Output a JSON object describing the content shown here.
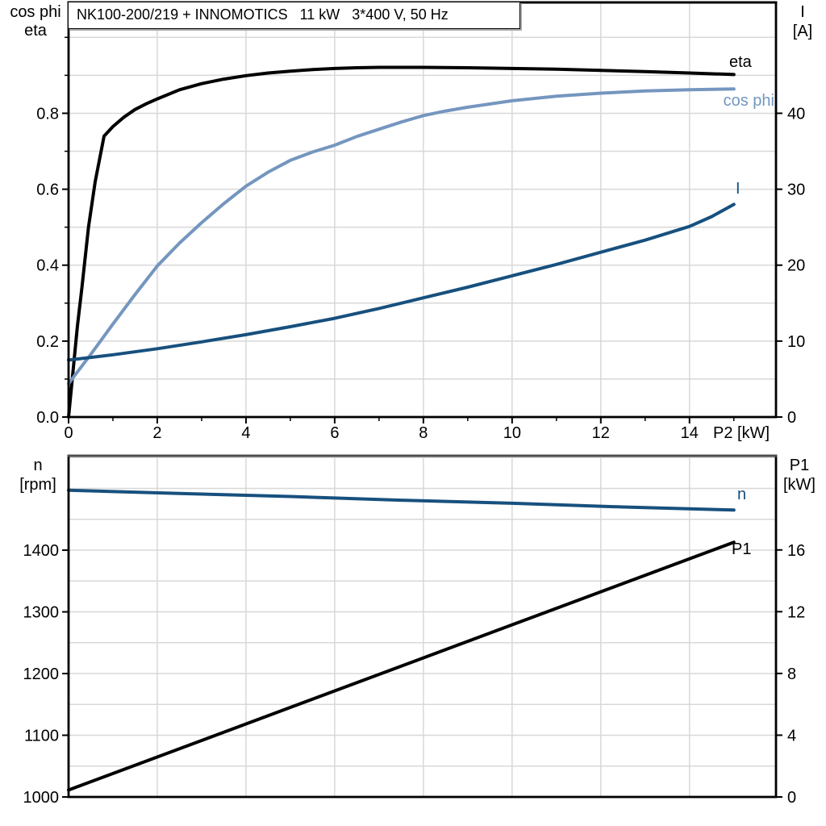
{
  "title_box": {
    "text": "NK100-200/219 + INNOMOTICS   11 kW   3*400 V, 50 Hz"
  },
  "axis_headers": {
    "top_left_line1": "cos phi",
    "top_left_line2": "eta",
    "top_right_line1": "I",
    "top_right_line2": "[A]",
    "bottom_left_line1": "n",
    "bottom_left_line2": "[rpm]",
    "bottom_right_line1": "P1",
    "bottom_right_line2": "[kW]"
  },
  "colors": {
    "black_curve": "#000000",
    "light_blue_curve": "#7496bf",
    "dark_blue_curve": "#17507e",
    "grid": "#d8d8d8",
    "frame": "#000000",
    "divider": "#4d4d4d",
    "background": "#ffffff"
  },
  "chart_data": [
    {
      "type": "line",
      "title": "NK100-200/219 + INNOMOTICS   11 kW   3*400 V, 50 Hz",
      "x_axis": {
        "label": "P2 [kW]",
        "tick_values": [
          0,
          2,
          4,
          6,
          8,
          10,
          12,
          14
        ],
        "tick_labels": [
          "0",
          "2",
          "4",
          "6",
          "8",
          "10",
          "12",
          "14"
        ],
        "range": [
          0,
          15.95
        ],
        "minor_tick_step": 1
      },
      "left_axis": {
        "name": "cos phi / eta",
        "tick_values": [
          0.8,
          0.6,
          0.4,
          0.2,
          0.0
        ],
        "tick_labels": [
          "0.8",
          "0.6",
          "0.4",
          "0.2",
          "0.0"
        ],
        "range": [
          0,
          1.092
        ],
        "minor_grid_step": 0.1
      },
      "right_axis": {
        "name": "I [A]",
        "tick_values": [
          40,
          30,
          20,
          10,
          0
        ],
        "tick_labels": [
          "40",
          "30",
          "20",
          "10",
          "0"
        ],
        "range": [
          0,
          54.6
        ]
      },
      "series": [
        {
          "name": "eta",
          "label": "eta",
          "axis": "left",
          "color": "#000000",
          "x": [
            0,
            0.1,
            0.2,
            0.3,
            0.45,
            0.6,
            0.8,
            1.0,
            1.25,
            1.5,
            1.75,
            2,
            2.5,
            3,
            3.5,
            4,
            4.5,
            5,
            5.5,
            6,
            6.5,
            7,
            8,
            9,
            10,
            11,
            12,
            13,
            14,
            15
          ],
          "y": [
            0,
            0.12,
            0.24,
            0.34,
            0.5,
            0.62,
            0.74,
            0.765,
            0.79,
            0.81,
            0.825,
            0.838,
            0.862,
            0.878,
            0.89,
            0.899,
            0.906,
            0.911,
            0.915,
            0.918,
            0.92,
            0.921,
            0.921,
            0.92,
            0.918,
            0.916,
            0.913,
            0.91,
            0.906,
            0.902
          ]
        },
        {
          "name": "cos phi",
          "label": "cos phi",
          "axis": "left",
          "color": "#7496bf",
          "x": [
            0,
            0.5,
            1,
            1.5,
            2,
            2.5,
            3,
            3.5,
            4,
            4.5,
            5,
            5.5,
            6,
            6.5,
            7,
            7.5,
            8,
            8.5,
            9,
            10,
            11,
            12,
            13,
            14,
            15
          ],
          "y": [
            0.088,
            0.165,
            0.245,
            0.323,
            0.398,
            0.458,
            0.512,
            0.562,
            0.608,
            0.645,
            0.676,
            0.698,
            0.716,
            0.739,
            0.758,
            0.777,
            0.794,
            0.806,
            0.816,
            0.833,
            0.845,
            0.853,
            0.859,
            0.862,
            0.864
          ]
        },
        {
          "name": "I",
          "label": "I",
          "axis": "right",
          "color": "#17507e",
          "x": [
            0,
            1,
            2,
            3,
            4,
            5,
            6,
            7,
            8,
            9,
            10,
            11,
            12,
            13,
            14,
            14.5,
            15
          ],
          "y": [
            7.5,
            8.2,
            9.0,
            9.9,
            10.85,
            11.9,
            13.0,
            14.3,
            15.7,
            17.1,
            18.6,
            20.1,
            21.7,
            23.3,
            25.1,
            26.4,
            28.0
          ]
        }
      ]
    },
    {
      "type": "line",
      "x_axis": {
        "label": "",
        "tick_values": [
          2,
          4,
          6,
          8,
          10,
          12,
          14
        ],
        "tick_labels": [],
        "range": [
          0,
          15.95
        ]
      },
      "left_axis": {
        "name": "n [rpm]",
        "tick_values": [
          1400,
          1300,
          1200,
          1100,
          1000
        ],
        "tick_labels": [
          "1400",
          "1300",
          "1200",
          "1100",
          "1000"
        ],
        "range": [
          1000,
          1553
        ],
        "minor_grid_step": 50
      },
      "right_axis": {
        "name": "P1 [kW]",
        "tick_values": [
          16,
          12,
          8,
          4,
          0
        ],
        "tick_labels": [
          "16",
          "12",
          "8",
          "4",
          "0"
        ],
        "range": [
          0,
          22.1
        ]
      },
      "series": [
        {
          "name": "n",
          "label": "n",
          "axis": "left",
          "color": "#17507e",
          "x": [
            0,
            2.5,
            5,
            7.5,
            10,
            12.5,
            15
          ],
          "y": [
            1497,
            1492,
            1487,
            1481,
            1476,
            1470,
            1465
          ]
        },
        {
          "name": "P1",
          "label": "P1",
          "axis": "right",
          "color": "#000000",
          "x": [
            0,
            15
          ],
          "y": [
            0.45,
            16.5
          ]
        }
      ]
    }
  ]
}
